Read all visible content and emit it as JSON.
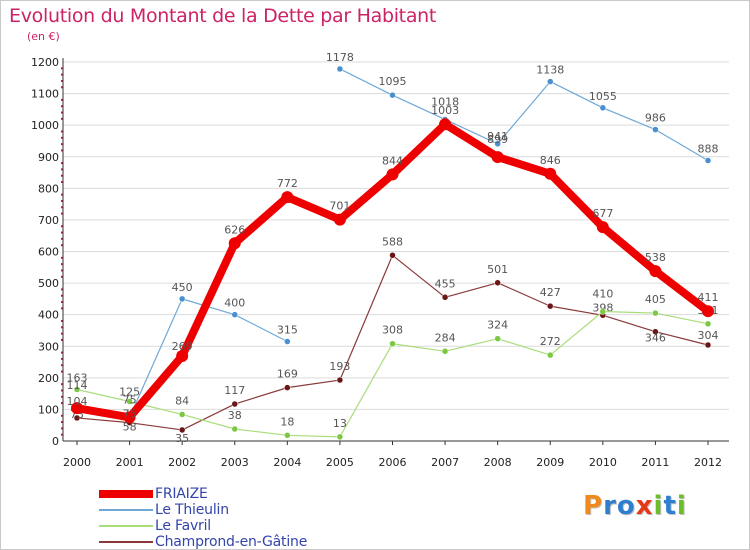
{
  "title": "Evolution du Montant de la Dette par Habitant",
  "unit": "(en €)",
  "logo": {
    "text": "Proxiti",
    "letters": [
      {
        "ch": "P",
        "color": "#f08a1c"
      },
      {
        "ch": "r",
        "color": "#2f7fd0"
      },
      {
        "ch": "o",
        "color": "#2f7fd0"
      },
      {
        "ch": "x",
        "color": "#e8381a"
      },
      {
        "ch": "i",
        "color": "#6bbd2a"
      },
      {
        "ch": "t",
        "color": "#2f7fd0"
      },
      {
        "ch": "i",
        "color": "#6bbd2a"
      }
    ]
  },
  "chart_data": {
    "type": "line",
    "title": "Evolution du Montant de la Dette par Habitant",
    "ylabel": "(en €)",
    "xlabel": "",
    "x": [
      "2000",
      "2001",
      "2002",
      "2003",
      "2004",
      "2005",
      "2006",
      "2007",
      "2008",
      "2009",
      "2010",
      "2011",
      "2012"
    ],
    "ylim": [
      0,
      1200
    ],
    "yticks": [
      0,
      100,
      200,
      300,
      400,
      500,
      600,
      700,
      800,
      900,
      1000,
      1100,
      1200
    ],
    "grid": "horizontal",
    "legend_position": "bottom-left",
    "series": [
      {
        "name": "FRIAIZE",
        "color": "#ee0000",
        "marker": "#ee0000",
        "values": [
          104,
          75,
          269,
          626,
          772,
          701,
          844,
          1003,
          899,
          846,
          677,
          538,
          411
        ]
      },
      {
        "name": "Le Thieulin",
        "color": "#6fa8d6",
        "marker": "#4a8fd0",
        "values": [
          114,
          75,
          450,
          400,
          315,
          1178,
          1095,
          1018,
          941,
          1138,
          1055,
          986,
          888
        ]
      },
      {
        "name": "Le Favril",
        "color": "#a9dd7a",
        "marker": "#7cc843",
        "values": [
          163,
          125,
          84,
          38,
          18,
          13,
          308,
          284,
          324,
          272,
          410,
          405,
          371
        ]
      },
      {
        "name": "Champrond-en-Gâtine",
        "color": "#8a3a3a",
        "marker": "#6b1616",
        "values": [
          73,
          58,
          35,
          117,
          169,
          193,
          588,
          455,
          501,
          427,
          398,
          346,
          304
        ]
      }
    ],
    "gaps": [
      {
        "series": "Le Thieulin",
        "from": "2004",
        "to": "2005"
      }
    ]
  }
}
